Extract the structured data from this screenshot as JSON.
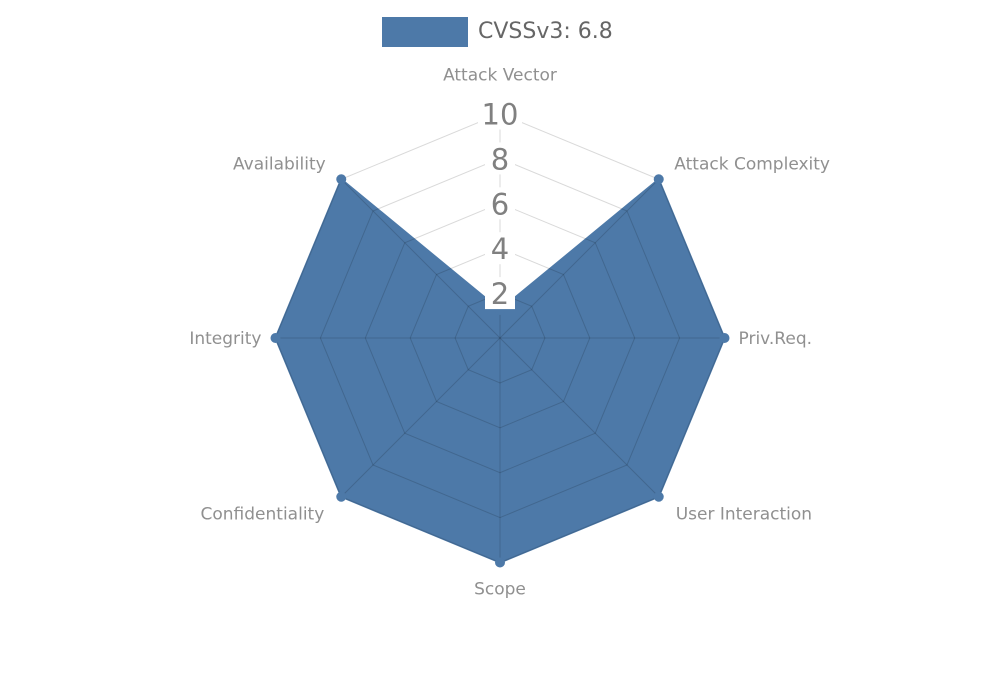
{
  "legend": {
    "label": "CVSSv3: 6.8",
    "swatch_color": "#4d79a8",
    "text_color": "#666666"
  },
  "chart_data": {
    "type": "radar",
    "title": "CVSSv3: 6.8",
    "axes": [
      "Attack Vector",
      "Attack Complexity",
      "Priv.Req.",
      "User Interaction",
      "Scope",
      "Confidentiality",
      "Integrity",
      "Availability"
    ],
    "series": [
      {
        "name": "CVSSv3: 6.8",
        "values": [
          1.25,
          10,
          10,
          10,
          10,
          10,
          10,
          10
        ]
      }
    ],
    "scale": {
      "min": 0,
      "max": 10,
      "tick_values": [
        2,
        4,
        6,
        8,
        10
      ],
      "tick_labels": [
        "2",
        "4",
        "6",
        "8",
        "10"
      ]
    },
    "grid_shape": "octagon",
    "ring_count": 5,
    "legend_position": "top-center",
    "colors": {
      "series_fill": "#4d79a8",
      "grid_line": "rgba(0,0,0,0.15)",
      "axis_label": "#909090",
      "tick_label": "#808080",
      "tick_box_background": "#ffffff",
      "background": "#ffffff"
    }
  }
}
